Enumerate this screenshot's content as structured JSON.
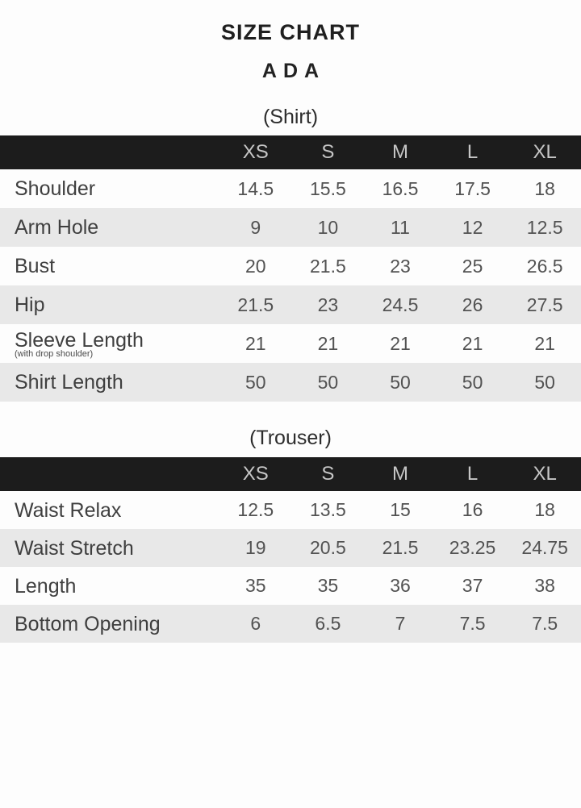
{
  "page": {
    "title": "SIZE CHART",
    "product": "ADA"
  },
  "colors": {
    "header_bg": "#1c1c1c",
    "header_text": "#c6c6c6",
    "stripe_gray": "#e8e8e8",
    "stripe_white": "#fdfdfd",
    "label_text": "#3f3f3f",
    "value_text": "#525252",
    "background": "#fdfdfd"
  },
  "chart_data": [
    {
      "type": "table",
      "title": "SIZE CHART",
      "subtitle": "ADA",
      "section": "(Shirt)",
      "columns": [
        "",
        "XS",
        "S",
        "M",
        "L",
        "XL"
      ],
      "rows": [
        {
          "label": "Shoulder",
          "values": [
            "14.5",
            "15.5",
            "16.5",
            "17.5",
            "18"
          ]
        },
        {
          "label": "Arm Hole",
          "values": [
            "9",
            "10",
            "11",
            "12",
            "12.5"
          ]
        },
        {
          "label": "Bust",
          "values": [
            "20",
            "21.5",
            "23",
            "25",
            "26.5"
          ]
        },
        {
          "label": "Hip",
          "values": [
            "21.5",
            "23",
            "24.5",
            "26",
            "27.5"
          ]
        },
        {
          "label": "Sleeve Length",
          "sublabel": "(with drop shoulder)",
          "values": [
            "21",
            "21",
            "21",
            "21",
            "21"
          ]
        },
        {
          "label": "Shirt Length",
          "values": [
            "50",
            "50",
            "50",
            "50",
            "50"
          ]
        }
      ]
    },
    {
      "type": "table",
      "section": "(Trouser)",
      "columns": [
        "",
        "XS",
        "S",
        "M",
        "L",
        "XL"
      ],
      "rows": [
        {
          "label": "Waist Relax",
          "values": [
            "12.5",
            "13.5",
            "15",
            "16",
            "18"
          ]
        },
        {
          "label": "Waist Stretch",
          "values": [
            "19",
            "20.5",
            "21.5",
            "23.25",
            "24.75"
          ]
        },
        {
          "label": "Length",
          "values": [
            "35",
            "35",
            "36",
            "37",
            "38"
          ]
        },
        {
          "label": "Bottom Opening",
          "values": [
            "6",
            "6.5",
            "7",
            "7.5",
            "7.5"
          ]
        }
      ]
    }
  ]
}
